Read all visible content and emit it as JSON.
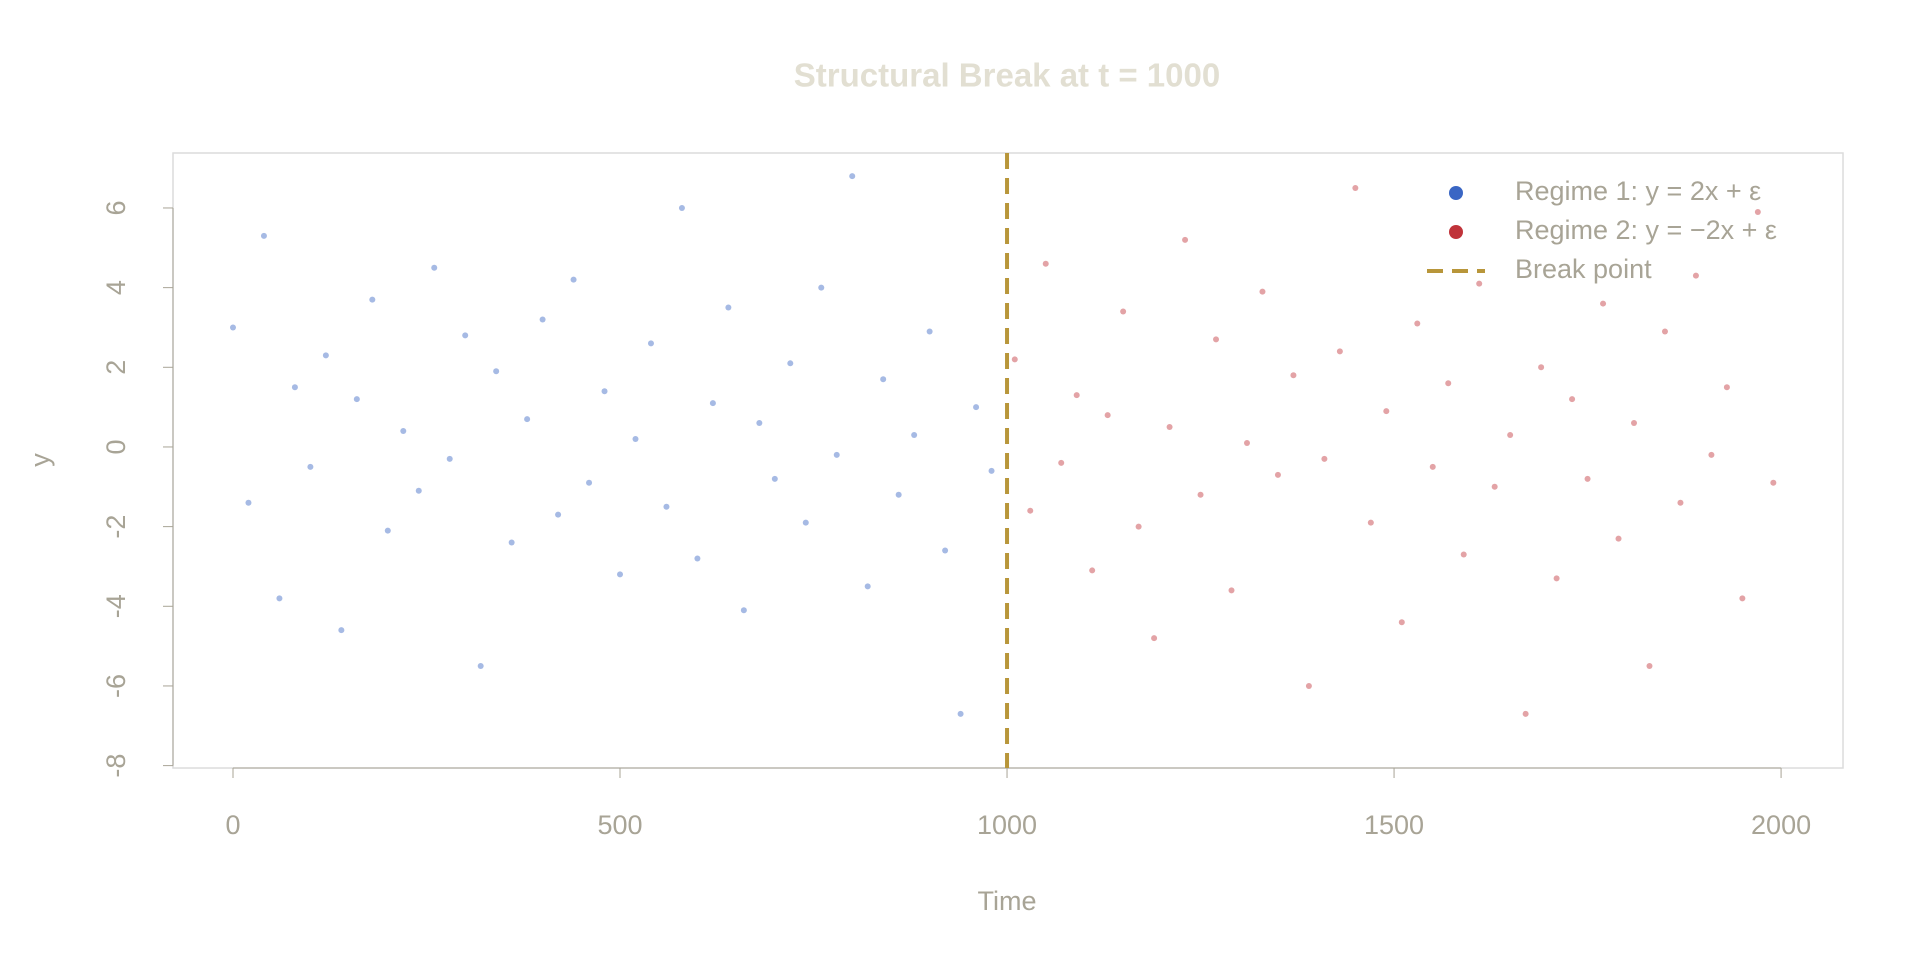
{
  "chart_data": {
    "type": "scatter",
    "title": "Structural Break at t = 1000",
    "x_label": "Time",
    "y_label": "y",
    "xlim": [
      -77.5,
      2080
    ],
    "ylim": [
      -8.06,
      7.38
    ],
    "xticks": [
      0,
      500,
      1000,
      1500,
      2000
    ],
    "yticks": [
      -8,
      -6,
      -4,
      -2,
      0,
      2,
      4,
      6
    ],
    "legend_position": "topright",
    "break_x": 1000,
    "break_name": "Break point",
    "break_color": "#b8963a",
    "series": [
      {
        "name": "Regime 1: y = 2x + ε",
        "color": "#3a66c4",
        "x": [
          0,
          20,
          40,
          60,
          80,
          100,
          120,
          140,
          160,
          180,
          200,
          220,
          240,
          260,
          280,
          300,
          320,
          340,
          360,
          380,
          400,
          420,
          440,
          460,
          480,
          500,
          520,
          540,
          560,
          580,
          600,
          620,
          640,
          660,
          680,
          700,
          720,
          740,
          760,
          780,
          800,
          820,
          840,
          860,
          880,
          900,
          920,
          940,
          960,
          980
        ],
        "values": [
          3.0,
          -1.4,
          5.3,
          -3.8,
          1.5,
          -0.5,
          2.3,
          -4.6,
          1.2,
          3.7,
          -2.1,
          0.4,
          -1.1,
          4.5,
          -0.3,
          2.8,
          -5.5,
          1.9,
          -2.4,
          0.7,
          3.2,
          -1.7,
          4.2,
          -0.9,
          1.4,
          -3.2,
          0.2,
          2.6,
          -1.5,
          6.0,
          -2.8,
          1.1,
          3.5,
          -4.1,
          0.6,
          -0.8,
          2.1,
          -1.9,
          4.0,
          -0.2,
          6.8,
          -3.5,
          1.7,
          -1.2,
          0.3,
          2.9,
          -2.6,
          -6.7,
          1.0,
          -0.6
        ]
      },
      {
        "name": "Regime 2: y = −2x + ε",
        "color": "#c0333a",
        "x": [
          1010,
          1030,
          1050,
          1070,
          1090,
          1110,
          1130,
          1150,
          1170,
          1190,
          1210,
          1230,
          1250,
          1270,
          1290,
          1310,
          1330,
          1350,
          1370,
          1390,
          1410,
          1430,
          1450,
          1470,
          1490,
          1510,
          1530,
          1550,
          1570,
          1590,
          1610,
          1630,
          1650,
          1670,
          1690,
          1710,
          1730,
          1750,
          1770,
          1790,
          1810,
          1830,
          1850,
          1870,
          1890,
          1910,
          1930,
          1950,
          1970,
          1990
        ],
        "values": [
          2.2,
          -1.6,
          4.6,
          -0.4,
          1.3,
          -3.1,
          0.8,
          3.4,
          -2.0,
          -4.8,
          0.5,
          5.2,
          -1.2,
          2.7,
          -3.6,
          0.1,
          3.9,
          -0.7,
          1.8,
          -6.0,
          -0.3,
          2.4,
          6.5,
          -1.9,
          0.9,
          -4.4,
          3.1,
          -0.5,
          1.6,
          -2.7,
          4.1,
          -1.0,
          0.3,
          -6.7,
          2.0,
          -3.3,
          1.2,
          -0.8,
          3.6,
          -2.3,
          0.6,
          -5.5,
          2.9,
          -1.4,
          4.3,
          -0.2,
          1.5,
          -3.8,
          5.9,
          -0.9
        ]
      }
    ]
  }
}
